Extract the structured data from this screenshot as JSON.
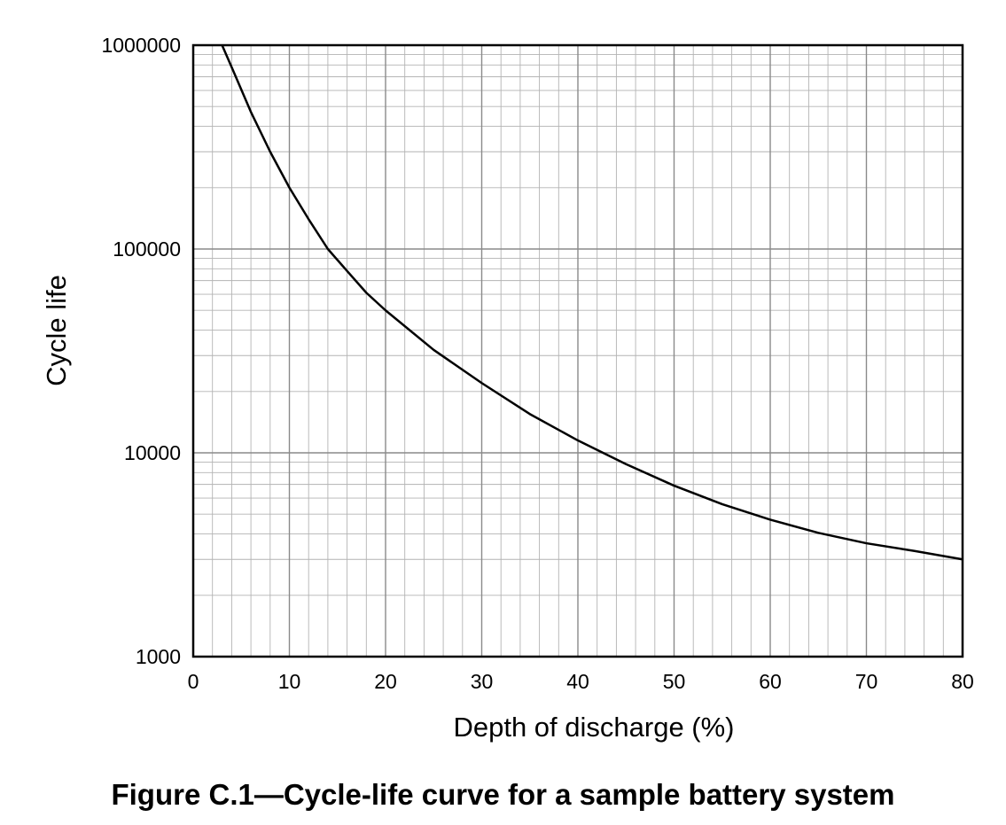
{
  "caption": "Figure C.1—Cycle-life curve for a sample battery system",
  "chart_data": {
    "type": "line",
    "title": "",
    "xlabel": "Depth of discharge (%)",
    "ylabel": "Cycle life",
    "xlim": [
      0,
      80
    ],
    "ylim": [
      1000,
      1000000
    ],
    "y_scale": "log",
    "x_ticks": [
      "0",
      "10",
      "20",
      "30",
      "40",
      "50",
      "60",
      "70",
      "80"
    ],
    "y_ticks": [
      "1000",
      "10000",
      "100000",
      "1000000"
    ],
    "grid": true,
    "line_color": "#000000",
    "grid_color": "#b3b3b3",
    "series": [
      {
        "x": [
          3,
          4,
          6,
          8,
          10,
          12,
          14,
          16,
          18,
          20,
          25,
          30,
          35,
          40,
          45,
          50,
          55,
          60,
          65,
          70,
          75,
          80
        ],
        "y": [
          1000000,
          780000,
          470000,
          300000,
          200000,
          140000,
          100000,
          78000,
          61000,
          50000,
          32000,
          22000,
          15500,
          11500,
          8800,
          6900,
          5600,
          4700,
          4050,
          3600,
          3300,
          3000
        ]
      }
    ]
  }
}
